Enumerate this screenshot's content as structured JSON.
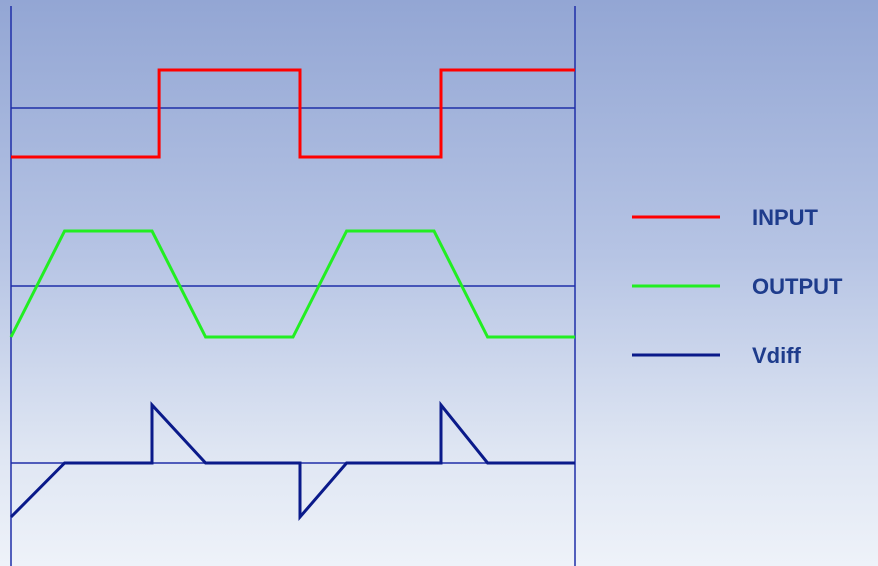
{
  "chart_data": {
    "type": "line",
    "title": "",
    "xlabel": "",
    "ylabel": "",
    "grid": false,
    "legend_position": "right",
    "series": [
      {
        "name": "INPUT",
        "color": "#ff0000",
        "baseline": 0,
        "points": [
          [
            0,
            -1
          ],
          [
            1.05,
            -1
          ],
          [
            1.05,
            1
          ],
          [
            2.05,
            1
          ],
          [
            2.05,
            -1
          ],
          [
            3.05,
            -1
          ],
          [
            3.05,
            1
          ],
          [
            4.0,
            1
          ]
        ]
      },
      {
        "name": "OUTPUT",
        "color": "#22ee22",
        "baseline": 0,
        "points": [
          [
            0,
            -1
          ],
          [
            0.38,
            1
          ],
          [
            1.0,
            1
          ],
          [
            1.38,
            -1
          ],
          [
            2.0,
            -1
          ],
          [
            2.38,
            1
          ],
          [
            3.0,
            1
          ],
          [
            3.38,
            -1
          ],
          [
            4.0,
            -1
          ]
        ]
      },
      {
        "name": "Vdiff",
        "color": "#0a1a8a",
        "baseline": 0,
        "points": [
          [
            0,
            -1
          ],
          [
            0.38,
            0
          ],
          [
            1.0,
            0
          ],
          [
            1.0,
            1
          ],
          [
            1.38,
            0
          ],
          [
            2.05,
            0
          ],
          [
            2.05,
            -1
          ],
          [
            2.38,
            0
          ],
          [
            3.05,
            0
          ],
          [
            3.05,
            1
          ],
          [
            3.38,
            0
          ],
          [
            4.0,
            0
          ]
        ]
      }
    ]
  }
}
